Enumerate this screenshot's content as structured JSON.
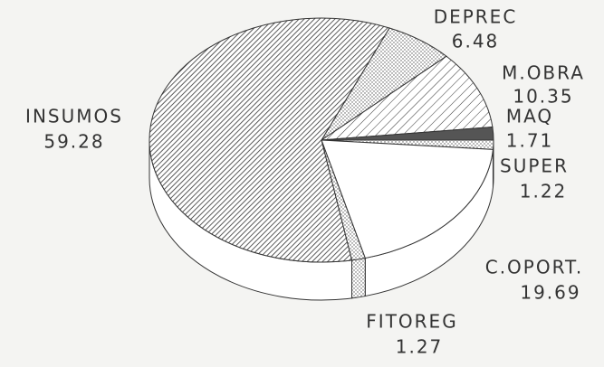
{
  "chart_data": {
    "type": "pie",
    "categories": [
      "DEPREC",
      "M.OBRA",
      "MAQ",
      "SUPER",
      "C.OPORT.",
      "FITOREG",
      "INSUMOS"
    ],
    "values": [
      6.48,
      10.35,
      1.71,
      1.22,
      19.69,
      1.27,
      59.28
    ]
  }
}
